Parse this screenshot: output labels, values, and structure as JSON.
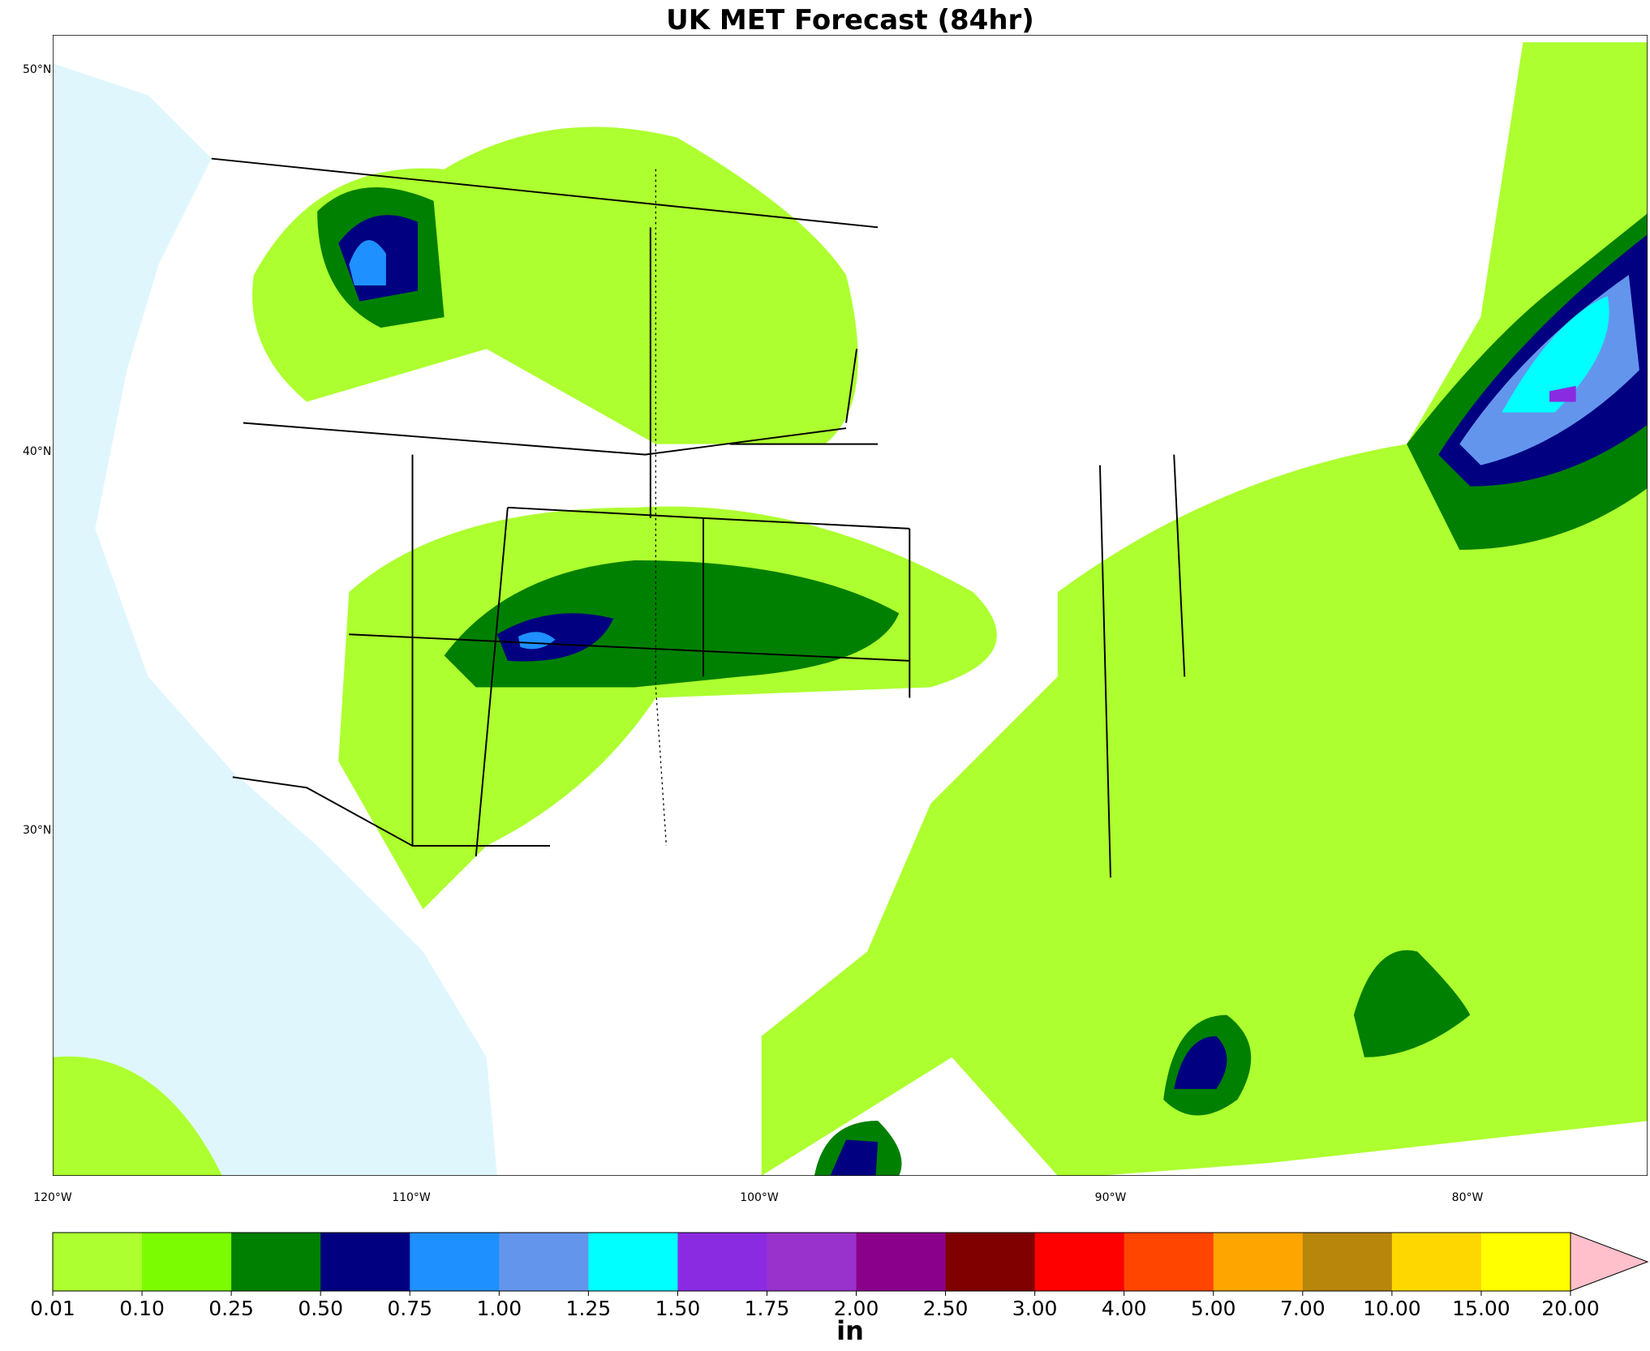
{
  "header": {
    "title": "UK MET Forecast (84hr)"
  },
  "map": {
    "lat_labels": [
      "50°N",
      "40°N",
      "30°N"
    ],
    "lon_labels": [
      "120°W",
      "110°W",
      "100°W",
      "90°W",
      "80°W"
    ]
  },
  "legend": {
    "unit": "in",
    "ticks": [
      "0.01",
      "0.10",
      "0.25",
      "0.50",
      "0.75",
      "1.00",
      "1.25",
      "1.50",
      "1.75",
      "2.00",
      "2.50",
      "3.00",
      "4.00",
      "5.00",
      "7.00",
      "10.00",
      "15.00",
      "20.00"
    ],
    "colors": [
      "#adff2f",
      "#7cfc00",
      "#008000",
      "#000080",
      "#1e90ff",
      "#6495ed",
      "#00ffff",
      "#8a2be2",
      "#9932cc",
      "#8b008b",
      "#800000",
      "#ff0000",
      "#ff4500",
      "#ffa500",
      "#b8860b",
      "#ffd700",
      "#ffff00"
    ],
    "extend_color": "#ffc0cb"
  }
}
